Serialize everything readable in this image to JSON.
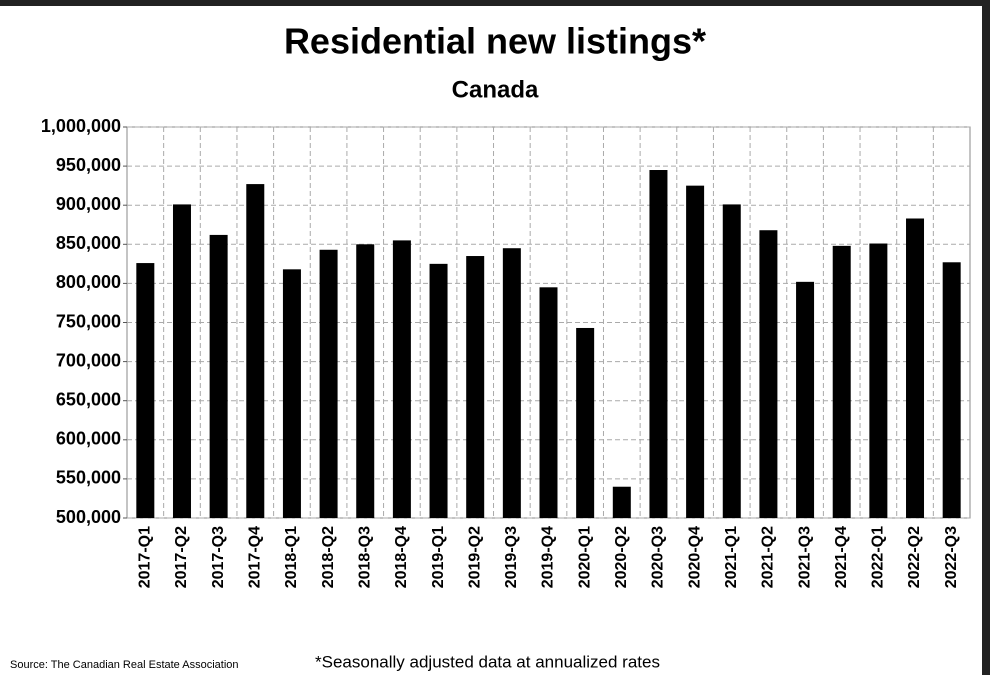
{
  "chart_data": {
    "type": "bar",
    "title": "Residential new listings*",
    "subtitle": "Canada",
    "categories": [
      "2017-Q1",
      "2017-Q2",
      "2017-Q3",
      "2017-Q4",
      "2018-Q1",
      "2018-Q2",
      "2018-Q3",
      "2018-Q4",
      "2019-Q1",
      "2019-Q2",
      "2019-Q3",
      "2019-Q4",
      "2020-Q1",
      "2020-Q2",
      "2020-Q3",
      "2020-Q4",
      "2021-Q1",
      "2021-Q2",
      "2021-Q3",
      "2021-Q4",
      "2022-Q1",
      "2022-Q2",
      "2022-Q3"
    ],
    "values": [
      826000,
      901000,
      862000,
      927000,
      818000,
      843000,
      850000,
      855000,
      825000,
      835000,
      845000,
      795000,
      743000,
      540000,
      945000,
      925000,
      901000,
      868000,
      802000,
      848000,
      851000,
      883000,
      827000
    ],
    "color": "#000000",
    "ylim": [
      500000,
      1000000
    ],
    "yticks": [
      {
        "value": 500000,
        "label": "500,000"
      },
      {
        "value": 550000,
        "label": "550,000"
      },
      {
        "value": 600000,
        "label": "600,000"
      },
      {
        "value": 650000,
        "label": "650,000"
      },
      {
        "value": 700000,
        "label": "700,000"
      },
      {
        "value": 750000,
        "label": "750,000"
      },
      {
        "value": 800000,
        "label": "800,000"
      },
      {
        "value": 850000,
        "label": "850,000"
      },
      {
        "value": 900000,
        "label": "900,000"
      },
      {
        "value": 950000,
        "label": "950,000"
      },
      {
        "value": 1000000,
        "label": "1,000,000"
      }
    ],
    "grid": true,
    "source": "Source: The Canadian Real Estate Association",
    "footnote": "*Seasonally adjusted data at annualized rates"
  }
}
